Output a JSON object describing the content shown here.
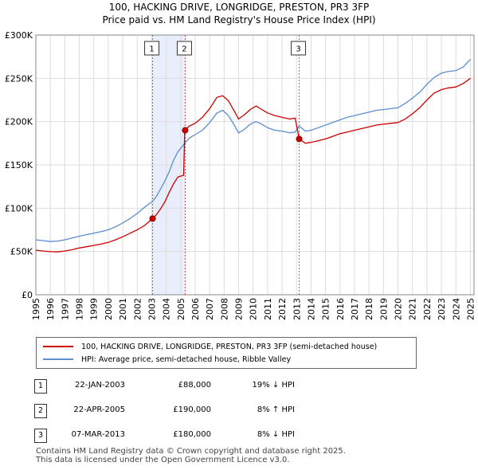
{
  "chart_data": {
    "type": "line",
    "title": "100, HACKING DRIVE, LONGRIDGE, PRESTON, PR3 3FP",
    "subtitle": "Price paid vs. HM Land Registry's House Price Index (HPI)",
    "xlim": [
      1995.0,
      2025.25
    ],
    "ylim": [
      0,
      300000
    ],
    "yticks": [
      {
        "value": 0,
        "label": "£0"
      },
      {
        "value": 50000,
        "label": "£50K"
      },
      {
        "value": 100000,
        "label": "£100K"
      },
      {
        "value": 150000,
        "label": "£150K"
      },
      {
        "value": 200000,
        "label": "£200K"
      },
      {
        "value": 250000,
        "label": "£250K"
      },
      {
        "value": 300000,
        "label": "£300K"
      }
    ],
    "xticks": [
      "1995",
      "1996",
      "1997",
      "1998",
      "1999",
      "2000",
      "2001",
      "2002",
      "2003",
      "2004",
      "2005",
      "2006",
      "2007",
      "2008",
      "2009",
      "2010",
      "2011",
      "2012",
      "2013",
      "2014",
      "2015",
      "2016",
      "2017",
      "2018",
      "2019",
      "2020",
      "2021",
      "2022",
      "2023",
      "2024",
      "2025"
    ],
    "grid": true,
    "series": [
      {
        "name": "100, HACKING DRIVE, LONGRIDGE, PRESTON, PR3 3FP (semi-detached house)",
        "color": "#cc0000",
        "points": [
          [
            1995.0,
            51500
          ],
          [
            1995.5,
            50500
          ],
          [
            1996.0,
            49800
          ],
          [
            1996.5,
            49500
          ],
          [
            1997.0,
            50500
          ],
          [
            1997.5,
            52000
          ],
          [
            1998.0,
            54000
          ],
          [
            1998.5,
            55500
          ],
          [
            1999.0,
            57000
          ],
          [
            1999.5,
            58500
          ],
          [
            2000.0,
            60500
          ],
          [
            2000.5,
            63500
          ],
          [
            2001.0,
            67000
          ],
          [
            2001.5,
            71000
          ],
          [
            2002.0,
            75000
          ],
          [
            2002.5,
            80000
          ],
          [
            2003.06,
            88000
          ],
          [
            2003.3,
            92000
          ],
          [
            2003.6,
            99000
          ],
          [
            2003.9,
            107000
          ],
          [
            2004.2,
            118000
          ],
          [
            2004.5,
            128000
          ],
          [
            2004.8,
            136000
          ],
          [
            2005.2,
            138000
          ],
          [
            2005.28,
            190000
          ],
          [
            2005.6,
            195000
          ],
          [
            2006.0,
            198000
          ],
          [
            2006.5,
            205000
          ],
          [
            2007.0,
            215000
          ],
          [
            2007.5,
            228000
          ],
          [
            2007.9,
            230000
          ],
          [
            2008.3,
            224000
          ],
          [
            2008.7,
            212000
          ],
          [
            2009.0,
            203000
          ],
          [
            2009.4,
            208000
          ],
          [
            2009.8,
            214000
          ],
          [
            2010.2,
            218000
          ],
          [
            2010.6,
            214000
          ],
          [
            2011.0,
            210000
          ],
          [
            2011.5,
            207000
          ],
          [
            2012.0,
            205000
          ],
          [
            2012.5,
            203000
          ],
          [
            2012.9,
            204000
          ],
          [
            2013.18,
            180000
          ],
          [
            2013.6,
            175000
          ],
          [
            2014.0,
            176000
          ],
          [
            2014.5,
            178000
          ],
          [
            2015.0,
            180000
          ],
          [
            2015.5,
            183000
          ],
          [
            2016.0,
            186000
          ],
          [
            2016.5,
            188000
          ],
          [
            2017.0,
            190000
          ],
          [
            2017.5,
            192000
          ],
          [
            2018.0,
            194000
          ],
          [
            2018.5,
            196000
          ],
          [
            2019.0,
            197000
          ],
          [
            2019.5,
            198000
          ],
          [
            2020.0,
            199000
          ],
          [
            2020.5,
            203000
          ],
          [
            2021.0,
            209000
          ],
          [
            2021.5,
            216000
          ],
          [
            2022.0,
            225000
          ],
          [
            2022.5,
            233000
          ],
          [
            2023.0,
            237000
          ],
          [
            2023.5,
            239000
          ],
          [
            2024.0,
            240000
          ],
          [
            2024.5,
            244000
          ],
          [
            2025.0,
            250000
          ]
        ]
      },
      {
        "name": "HPI: Average price, semi-detached house, Ribble Valley",
        "color": "#5b8fd0",
        "points": [
          [
            1995.0,
            63500
          ],
          [
            1995.5,
            62500
          ],
          [
            1996.0,
            61500
          ],
          [
            1996.5,
            62000
          ],
          [
            1997.0,
            63500
          ],
          [
            1997.5,
            65500
          ],
          [
            1998.0,
            67500
          ],
          [
            1998.5,
            69500
          ],
          [
            1999.0,
            71000
          ],
          [
            1999.5,
            73000
          ],
          [
            2000.0,
            75000
          ],
          [
            2000.5,
            78500
          ],
          [
            2001.0,
            83000
          ],
          [
            2001.5,
            88000
          ],
          [
            2002.0,
            94000
          ],
          [
            2002.5,
            101000
          ],
          [
            2003.06,
            108000
          ],
          [
            2003.3,
            113000
          ],
          [
            2003.6,
            122000
          ],
          [
            2003.9,
            131000
          ],
          [
            2004.2,
            142000
          ],
          [
            2004.5,
            155000
          ],
          [
            2004.8,
            165000
          ],
          [
            2005.28,
            175000
          ],
          [
            2005.6,
            181000
          ],
          [
            2006.0,
            185000
          ],
          [
            2006.5,
            190000
          ],
          [
            2007.0,
            199000
          ],
          [
            2007.5,
            210000
          ],
          [
            2007.9,
            213000
          ],
          [
            2008.3,
            207000
          ],
          [
            2008.7,
            196000
          ],
          [
            2009.0,
            187000
          ],
          [
            2009.4,
            191000
          ],
          [
            2009.8,
            197000
          ],
          [
            2010.2,
            200000
          ],
          [
            2010.6,
            197000
          ],
          [
            2011.0,
            193000
          ],
          [
            2011.5,
            190000
          ],
          [
            2012.0,
            189000
          ],
          [
            2012.5,
            187000
          ],
          [
            2012.9,
            188000
          ],
          [
            2013.18,
            195000
          ],
          [
            2013.6,
            189000
          ],
          [
            2014.0,
            190000
          ],
          [
            2014.5,
            193000
          ],
          [
            2015.0,
            196000
          ],
          [
            2015.5,
            199000
          ],
          [
            2016.0,
            202000
          ],
          [
            2016.5,
            205000
          ],
          [
            2017.0,
            207000
          ],
          [
            2017.5,
            209000
          ],
          [
            2018.0,
            211000
          ],
          [
            2018.5,
            213000
          ],
          [
            2019.0,
            214000
          ],
          [
            2019.5,
            215000
          ],
          [
            2020.0,
            216000
          ],
          [
            2020.5,
            221000
          ],
          [
            2021.0,
            227000
          ],
          [
            2021.5,
            234000
          ],
          [
            2022.0,
            243000
          ],
          [
            2022.5,
            251000
          ],
          [
            2023.0,
            256000
          ],
          [
            2023.5,
            258000
          ],
          [
            2024.0,
            259000
          ],
          [
            2024.5,
            263000
          ],
          [
            2025.0,
            272000
          ]
        ]
      }
    ],
    "sales": [
      {
        "num": "1",
        "x": 2003.06,
        "price": 88000
      },
      {
        "num": "2",
        "x": 2005.31,
        "price": 190000
      },
      {
        "num": "3",
        "x": 2013.18,
        "price": 180000
      }
    ],
    "shaded_ranges": [
      [
        2003.06,
        2005.31
      ]
    ]
  },
  "legend": {
    "red": "100, HACKING DRIVE, LONGRIDGE, PRESTON, PR3 3FP (semi-detached house)",
    "blue": "HPI: Average price, semi-detached house, Ribble Valley"
  },
  "table": [
    {
      "num": "1",
      "date": "22-JAN-2003",
      "price": "£88,000",
      "hpi": "19% ↓ HPI"
    },
    {
      "num": "2",
      "date": "22-APR-2005",
      "price": "£190,000",
      "hpi": "8% ↑ HPI"
    },
    {
      "num": "3",
      "date": "07-MAR-2013",
      "price": "£180,000",
      "hpi": "8% ↓ HPI"
    }
  ],
  "footer": {
    "line1": "Contains HM Land Registry data © Crown copyright and database right 2025.",
    "line2": "This data is licensed under the Open Government Licence v3.0."
  },
  "colors": {
    "red": "#cc0000",
    "blue": "#5b8fd0",
    "shade": "#e8eefb"
  }
}
